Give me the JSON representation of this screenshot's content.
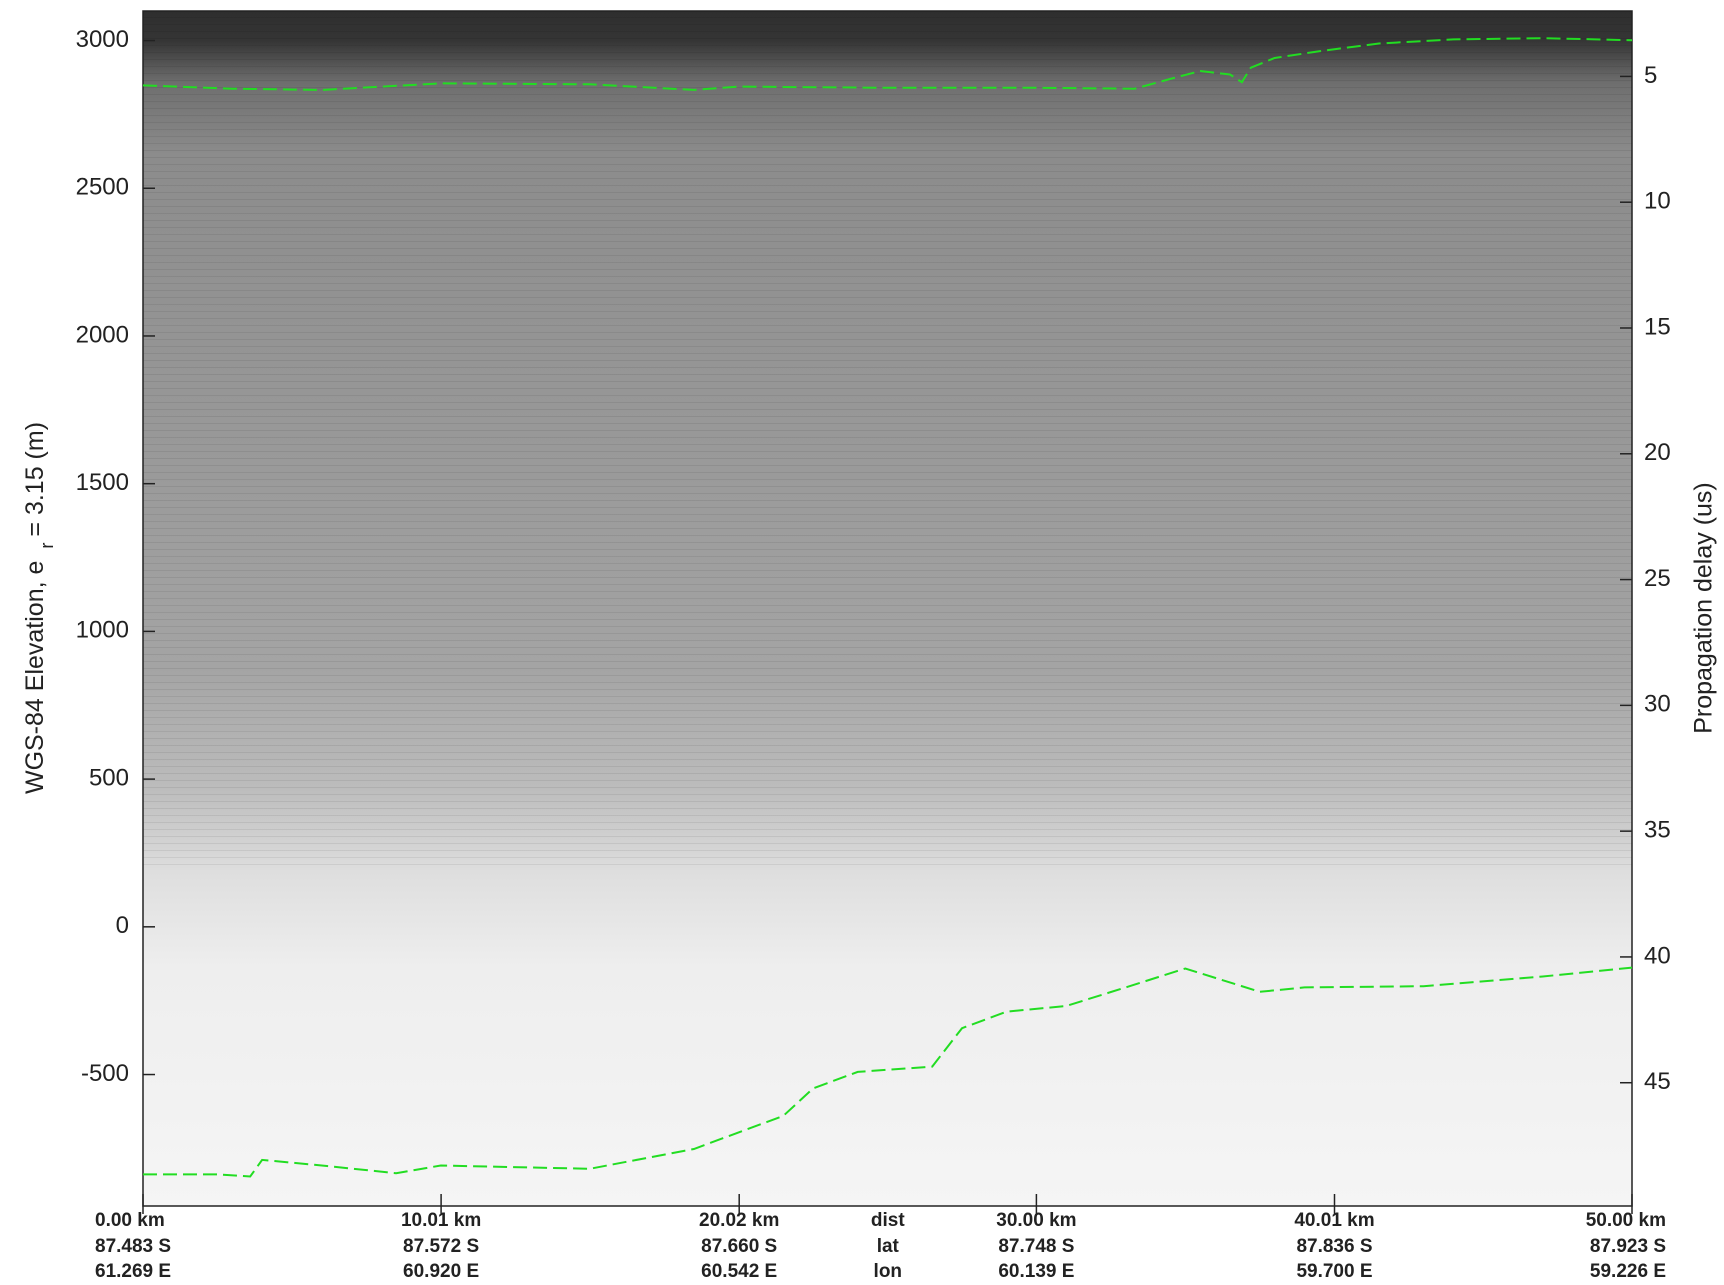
{
  "chart_data": {
    "type": "line",
    "ylabel": {
      "text": "WGS-84 Elevation, e",
      "subscript": "r",
      "suffix": "= 3.15 (m)"
    },
    "y2label": "Propagation delay (us)",
    "xlim": [
      0,
      50
    ],
    "ylim": [
      -945,
      3100
    ],
    "yticks": [
      -500,
      0,
      500,
      1000,
      1500,
      2000,
      2500,
      3000
    ],
    "y2lim": [
      49.9,
      2.4
    ],
    "y2ticks": [
      5,
      10,
      15,
      20,
      25,
      30,
      35,
      40,
      45
    ],
    "xticks": [
      {
        "value": 0,
        "label": "0.00 km"
      },
      {
        "value": 10.01,
        "label": "10.01 km"
      },
      {
        "value": 20.02,
        "label": "20.02 km"
      },
      {
        "value": 30.0,
        "label": "30.00 km"
      },
      {
        "value": 40.01,
        "label": "40.01 km"
      },
      {
        "value": 50.0,
        "label": "50.00 km"
      }
    ],
    "lat_labels": [
      "87.483 S",
      "87.572 S",
      "87.660 S",
      "87.748 S",
      "87.836 S",
      "87.923 S"
    ],
    "lon_labels": [
      "61.269 E",
      "60.920 E",
      "60.542 E",
      "60.139 E",
      "59.700 E",
      "59.226 E"
    ],
    "row_labels": [
      "dist",
      "lat",
      "lon"
    ],
    "dashed": true,
    "series": [
      {
        "color": "#22dd22",
        "x": [
          0,
          3,
          6,
          10,
          15,
          18.5,
          20,
          25,
          30,
          33.3,
          34.5,
          35.5,
          36.5,
          36.9,
          37.2,
          38,
          39.5,
          41.5,
          44,
          47,
          50
        ],
        "values": [
          2848,
          2837,
          2833,
          2855,
          2852,
          2833,
          2844,
          2840,
          2840,
          2837,
          2870,
          2897,
          2885,
          2859,
          2908,
          2941,
          2964,
          2990,
          3004,
          3008,
          3001
        ]
      },
      {
        "color": "#22dd22",
        "x": [
          0,
          2.5,
          3.6,
          4,
          6,
          8.5,
          10,
          15,
          18.5,
          20,
          21.5,
          22.5,
          24,
          26.5,
          27.5,
          29,
          31,
          33,
          35,
          37.5,
          39,
          43,
          47,
          50
        ],
        "values": [
          -838,
          -838,
          -845,
          -789,
          -808,
          -834,
          -808,
          -819,
          -752,
          -696,
          -640,
          -547,
          -491,
          -473,
          -343,
          -287,
          -268,
          -205,
          -141,
          -220,
          -205,
          -201,
          -168,
          -138
        ]
      }
    ]
  }
}
